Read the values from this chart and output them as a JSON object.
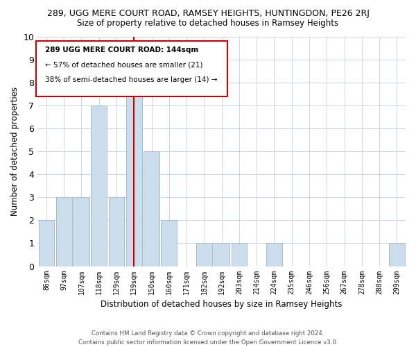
{
  "title": "289, UGG MERE COURT ROAD, RAMSEY HEIGHTS, HUNTINGDON, PE26 2RJ",
  "subtitle": "Size of property relative to detached houses in Ramsey Heights",
  "xlabel": "Distribution of detached houses by size in Ramsey Heights",
  "ylabel": "Number of detached properties",
  "bar_labels": [
    "86sqm",
    "97sqm",
    "107sqm",
    "118sqm",
    "129sqm",
    "139sqm",
    "150sqm",
    "160sqm",
    "171sqm",
    "182sqm",
    "192sqm",
    "203sqm",
    "214sqm",
    "224sqm",
    "235sqm",
    "246sqm",
    "256sqm",
    "267sqm",
    "278sqm",
    "288sqm",
    "299sqm"
  ],
  "bar_values": [
    2,
    3,
    3,
    7,
    3,
    8,
    5,
    2,
    0,
    1,
    1,
    1,
    0,
    1,
    0,
    0,
    0,
    0,
    0,
    0,
    1
  ],
  "bar_color": "#ccdded",
  "bar_edge_color": "#aabbcc",
  "red_line_x": 5,
  "highlight_color": "#cc0000",
  "ylim": [
    0,
    10
  ],
  "yticks": [
    0,
    1,
    2,
    3,
    4,
    5,
    6,
    7,
    8,
    9,
    10
  ],
  "annotation_title": "289 UGG MERE COURT ROAD: 144sqm",
  "annotation_line1": "← 57% of detached houses are smaller (21)",
  "annotation_line2": "38% of semi-detached houses are larger (14) →",
  "footer1": "Contains HM Land Registry data © Crown copyright and database right 2024.",
  "footer2": "Contains public sector information licensed under the Open Government Licence v3.0.",
  "bg_color": "#ffffff",
  "grid_color": "#c8d4e0"
}
